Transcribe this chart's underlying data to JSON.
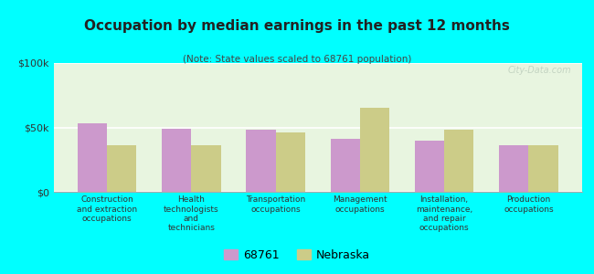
{
  "title": "Occupation by median earnings in the past 12 months",
  "subtitle": "(Note: State values scaled to 68761 population)",
  "categories": [
    "Construction\nand extraction\noccupations",
    "Health\ntechnologists\nand\ntechnicians",
    "Transportation\noccupations",
    "Management\noccupations",
    "Installation,\nmaintenance,\nand repair\noccupations",
    "Production\noccupations"
  ],
  "values_68761": [
    53000,
    49000,
    48000,
    41000,
    40000,
    36000
  ],
  "values_nebraska": [
    36000,
    36000,
    46000,
    65000,
    48000,
    36000
  ],
  "color_68761": "#cc99cc",
  "color_nebraska": "#cccc88",
  "background_color": "#00ffff",
  "ylim": [
    0,
    100000
  ],
  "yticks": [
    0,
    50000,
    100000
  ],
  "ytick_labels": [
    "$0",
    "$50k",
    "$100k"
  ],
  "legend_labels": [
    "68761",
    "Nebraska"
  ],
  "bar_width": 0.35,
  "watermark": "City-Data.com"
}
